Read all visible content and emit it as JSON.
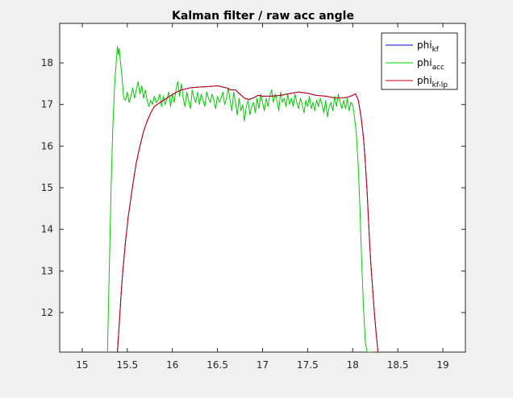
{
  "chart_data": {
    "type": "line",
    "title": "Kalman filter / raw acc angle",
    "xlabel": "",
    "ylabel": "",
    "xlim": [
      14.75,
      19.25
    ],
    "ylim": [
      11.05,
      18.95
    ],
    "xticks": [
      15,
      15.5,
      16,
      16.5,
      17,
      17.5,
      18,
      18.5,
      19
    ],
    "yticks": [
      12,
      13,
      14,
      15,
      16,
      17,
      18
    ],
    "xtick_labels": [
      "15",
      "15.5",
      "16",
      "16.5",
      "17",
      "17.5",
      "18",
      "18.5",
      "19"
    ],
    "ytick_labels": [
      "12",
      "13",
      "14",
      "15",
      "16",
      "17",
      "18"
    ],
    "grid": false,
    "legend_position": "top-right",
    "series": [
      {
        "name": "phi_kf",
        "legend_base": "phi",
        "legend_sub": "kf",
        "color": "#0000cc",
        "x": [
          15.39,
          15.41,
          15.43,
          15.45,
          15.48,
          15.51,
          15.54,
          15.57,
          15.6,
          15.64,
          15.68,
          15.72,
          15.76,
          15.8,
          15.85,
          15.9,
          15.95,
          16.0,
          16.05,
          16.1,
          16.2,
          16.3,
          16.4,
          16.5,
          16.6,
          16.65,
          16.7,
          16.75,
          16.8,
          16.85,
          16.9,
          16.95,
          17.0,
          17.1,
          17.2,
          17.3,
          17.4,
          17.5,
          17.6,
          17.7,
          17.8,
          17.9,
          17.95,
          18.0,
          18.03,
          18.06,
          18.09,
          18.12,
          18.14,
          18.16,
          18.18,
          18.2,
          18.22,
          18.24,
          18.26,
          18.28
        ],
        "y": [
          11.05,
          11.7,
          12.4,
          13.0,
          13.7,
          14.3,
          14.75,
          15.2,
          15.6,
          16.0,
          16.35,
          16.6,
          16.8,
          16.95,
          17.03,
          17.1,
          17.17,
          17.24,
          17.3,
          17.35,
          17.4,
          17.42,
          17.43,
          17.45,
          17.4,
          17.35,
          17.35,
          17.25,
          17.15,
          17.12,
          17.16,
          17.22,
          17.2,
          17.2,
          17.22,
          17.26,
          17.3,
          17.27,
          17.22,
          17.2,
          17.16,
          17.16,
          17.18,
          17.22,
          17.26,
          17.12,
          16.75,
          16.2,
          15.6,
          14.9,
          14.0,
          13.2,
          12.6,
          12.0,
          11.5,
          11.05
        ]
      },
      {
        "name": "phi_acc",
        "legend_base": "phi",
        "legend_sub": "acc",
        "color": "#00cc00",
        "x": [
          15.28,
          15.3,
          15.32,
          15.34,
          15.36,
          15.38,
          15.39,
          15.4,
          15.41,
          15.42,
          15.44,
          15.46,
          15.48,
          15.5,
          15.52,
          15.54,
          15.56,
          15.58,
          15.6,
          15.62,
          15.64,
          15.66,
          15.68,
          15.7,
          15.72,
          15.74,
          15.76,
          15.78,
          15.8,
          15.82,
          15.84,
          15.86,
          15.88,
          15.9,
          15.92,
          15.94,
          15.96,
          15.98,
          16.0,
          16.02,
          16.04,
          16.06,
          16.08,
          16.1,
          16.12,
          16.14,
          16.16,
          16.18,
          16.2,
          16.22,
          16.24,
          16.26,
          16.28,
          16.3,
          16.32,
          16.34,
          16.36,
          16.38,
          16.4,
          16.42,
          16.44,
          16.46,
          16.48,
          16.5,
          16.52,
          16.54,
          16.56,
          16.58,
          16.6,
          16.62,
          16.64,
          16.66,
          16.68,
          16.7,
          16.72,
          16.74,
          16.76,
          16.78,
          16.8,
          16.82,
          16.84,
          16.86,
          16.88,
          16.9,
          16.92,
          16.94,
          16.96,
          16.98,
          17.0,
          17.02,
          17.04,
          17.06,
          17.08,
          17.1,
          17.12,
          17.14,
          17.16,
          17.18,
          17.2,
          17.22,
          17.24,
          17.26,
          17.28,
          17.3,
          17.32,
          17.34,
          17.36,
          17.38,
          17.4,
          17.42,
          17.44,
          17.46,
          17.48,
          17.5,
          17.52,
          17.54,
          17.56,
          17.58,
          17.6,
          17.62,
          17.64,
          17.66,
          17.68,
          17.7,
          17.72,
          17.74,
          17.76,
          17.78,
          17.8,
          17.82,
          17.84,
          17.86,
          17.88,
          17.9,
          17.92,
          17.94,
          17.96,
          17.98,
          18.0,
          18.02,
          18.04,
          18.06,
          18.08,
          18.1,
          18.12,
          18.14,
          18.16,
          18.18,
          18.2,
          18.22
        ],
        "y": [
          11.05,
          13.0,
          15.0,
          16.5,
          17.5,
          18.1,
          18.4,
          18.2,
          18.35,
          18.1,
          17.7,
          17.15,
          17.1,
          17.3,
          17.05,
          17.2,
          17.4,
          17.15,
          17.35,
          17.55,
          17.25,
          17.45,
          17.15,
          17.35,
          17.1,
          16.95,
          17.1,
          17.0,
          17.2,
          17.05,
          17.1,
          17.25,
          16.95,
          17.2,
          17.0,
          17.15,
          17.3,
          16.95,
          17.25,
          17.05,
          17.35,
          17.55,
          17.2,
          17.5,
          17.15,
          16.95,
          17.3,
          17.1,
          16.9,
          17.35,
          17.15,
          17.05,
          17.3,
          17.0,
          17.25,
          17.1,
          16.95,
          17.3,
          17.15,
          17.05,
          17.25,
          17.1,
          16.9,
          17.2,
          17.05,
          17.15,
          17.3,
          17.0,
          17.15,
          17.4,
          17.1,
          16.85,
          17.3,
          17.05,
          16.75,
          17.15,
          16.85,
          17.0,
          16.6,
          16.95,
          17.1,
          16.75,
          16.95,
          17.05,
          16.8,
          17.15,
          16.9,
          17.25,
          17.05,
          16.85,
          17.15,
          16.95,
          17.2,
          17.35,
          17.05,
          17.25,
          17.1,
          16.85,
          17.3,
          17.05,
          17.15,
          16.95,
          17.25,
          17.0,
          17.15,
          16.95,
          17.25,
          17.05,
          16.9,
          17.15,
          17.0,
          16.8,
          17.1,
          16.95,
          17.2,
          16.9,
          17.05,
          16.85,
          17.1,
          16.95,
          17.15,
          17.0,
          16.8,
          17.1,
          16.7,
          16.95,
          17.05,
          16.85,
          17.2,
          16.95,
          17.25,
          17.05,
          16.9,
          17.1,
          16.9,
          17.15,
          16.85,
          17.05,
          17.0,
          16.7,
          16.3,
          15.6,
          14.5,
          13.2,
          12.1,
          11.3,
          11.05,
          11.05,
          11.05,
          11.05
        ],
        "note_y_clipped_below": 11.05
      },
      {
        "name": "phi_kf-lp",
        "legend_base": "phi",
        "legend_sub": "kf-lp",
        "color": "#cc0000",
        "x": [
          15.39,
          15.41,
          15.43,
          15.45,
          15.48,
          15.51,
          15.54,
          15.57,
          15.6,
          15.64,
          15.68,
          15.72,
          15.76,
          15.8,
          15.85,
          15.9,
          15.95,
          16.0,
          16.05,
          16.1,
          16.2,
          16.3,
          16.4,
          16.5,
          16.6,
          16.65,
          16.7,
          16.75,
          16.8,
          16.85,
          16.9,
          16.95,
          17.0,
          17.1,
          17.2,
          17.3,
          17.4,
          17.5,
          17.6,
          17.7,
          17.8,
          17.9,
          17.95,
          18.0,
          18.03,
          18.06,
          18.09,
          18.12,
          18.14,
          18.16,
          18.18,
          18.2,
          18.22,
          18.24,
          18.26,
          18.28
        ],
        "y": [
          11.05,
          11.7,
          12.4,
          13.0,
          13.7,
          14.3,
          14.75,
          15.2,
          15.6,
          16.0,
          16.35,
          16.6,
          16.8,
          16.95,
          17.03,
          17.1,
          17.17,
          17.24,
          17.3,
          17.35,
          17.4,
          17.42,
          17.43,
          17.45,
          17.4,
          17.35,
          17.35,
          17.25,
          17.15,
          17.12,
          17.16,
          17.22,
          17.2,
          17.2,
          17.22,
          17.26,
          17.3,
          17.27,
          17.22,
          17.2,
          17.16,
          17.16,
          17.18,
          17.22,
          17.26,
          17.12,
          16.75,
          16.2,
          15.6,
          14.9,
          14.0,
          13.2,
          12.6,
          12.0,
          11.5,
          11.05
        ]
      }
    ]
  }
}
